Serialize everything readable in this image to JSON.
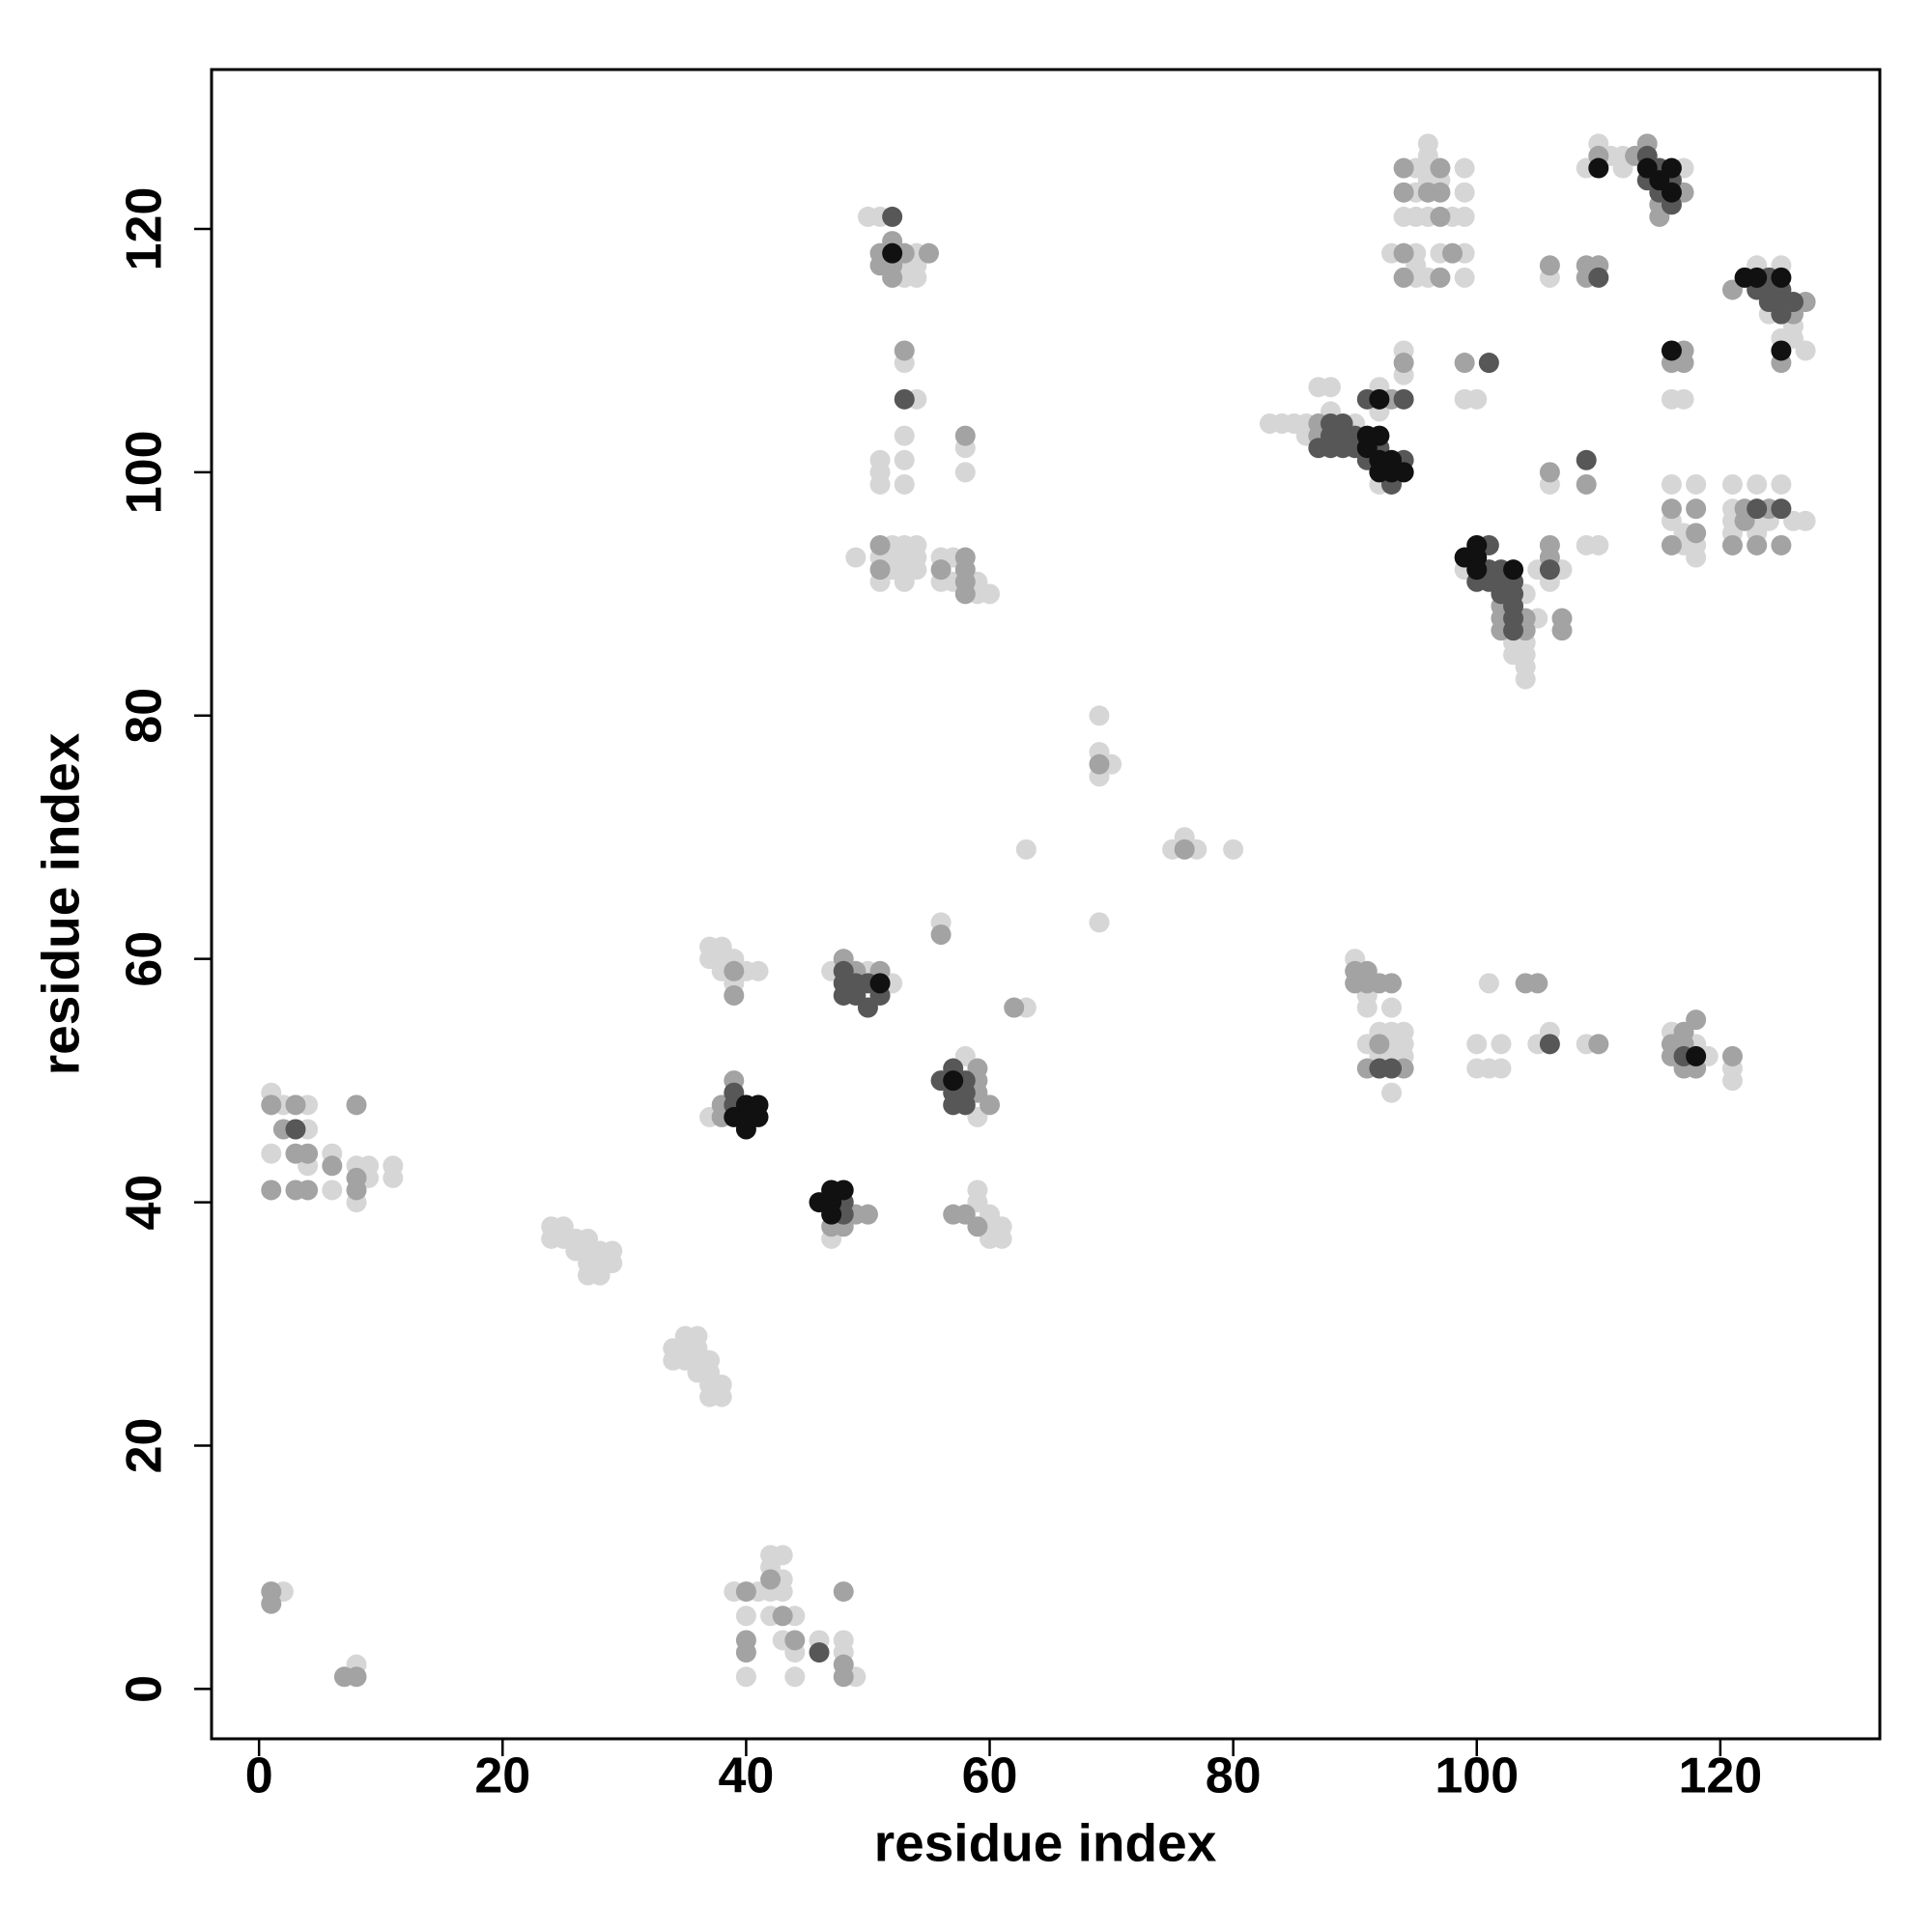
{
  "chart_data": {
    "type": "scatter",
    "xlabel": "residue index",
    "ylabel": "residue index",
    "xlim": [
      -3.9,
      133.1
    ],
    "ylim": [
      -4.1,
      133.1
    ],
    "xticks": [
      0,
      20,
      40,
      60,
      80,
      100,
      120
    ],
    "yticks": [
      0,
      20,
      40,
      60,
      80,
      100,
      120
    ],
    "series": [
      {
        "color": "#d6d6d6",
        "x": [
          1,
          2,
          4,
          4,
          1,
          4,
          6,
          6,
          8,
          9,
          9,
          8,
          11,
          11,
          24,
          25,
          24,
          25,
          26,
          27,
          26,
          27,
          28,
          29,
          27,
          28,
          29,
          27,
          28,
          35,
          36,
          34,
          35,
          36,
          34,
          35,
          36,
          37,
          36,
          37,
          37,
          38,
          37,
          38,
          2,
          8,
          42,
          43,
          42,
          39,
          41,
          42,
          43,
          43,
          40,
          42,
          44,
          43,
          44,
          46,
          48,
          48,
          40,
          44,
          49,
          37,
          38,
          37,
          38,
          39,
          38,
          40,
          41,
          39,
          37,
          47,
          47,
          50,
          52,
          58,
          59,
          59,
          59,
          60,
          60,
          61,
          60,
          61,
          63,
          56,
          69,
          69,
          70,
          69,
          69,
          63,
          75,
          76,
          77,
          80,
          49,
          52,
          53,
          54,
          51,
          52,
          53,
          54,
          52,
          53,
          54,
          51,
          53,
          56,
          57,
          56,
          57,
          59,
          59,
          60,
          51,
          51,
          51,
          53,
          53,
          53,
          58,
          58,
          53,
          54,
          50,
          51,
          54,
          53,
          54,
          53,
          54,
          83,
          84,
          85,
          86,
          86,
          87,
          88,
          88,
          92,
          92,
          90,
          92,
          94,
          94,
          96,
          96,
          95,
          96,
          99,
          95,
          99,
          94,
          95,
          96,
          98,
          99,
          96,
          97,
          93,
          95,
          97,
          99,
          95,
          96,
          99,
          95,
          99,
          100,
          104,
          103,
          104,
          103,
          104,
          104,
          104,
          105,
          106,
          105,
          107,
          99,
          106,
          106,
          109,
          110,
          109,
          110,
          111,
          112,
          117,
          112,
          125,
          123,
          124,
          126,
          125,
          126,
          127,
          116,
          117,
          116,
          118,
          116,
          117,
          117,
          118,
          118,
          121,
          123,
          125,
          121,
          121,
          123,
          124,
          126,
          127,
          121,
          123,
          90,
          91,
          91,
          93,
          93,
          94,
          92,
          91,
          93,
          94,
          92,
          93,
          94,
          93,
          100,
          102,
          105,
          100,
          101,
          102,
          101,
          106,
          109,
          116,
          118,
          119,
          121,
          121
        ],
        "y": [
          49,
          48,
          48,
          46,
          44,
          43,
          44,
          41,
          43,
          43,
          42,
          40,
          43,
          42,
          38,
          38,
          37,
          37,
          37,
          37,
          36,
          36,
          36,
          36,
          35,
          35,
          35,
          34,
          34,
          29,
          29,
          28,
          28,
          28,
          27,
          27,
          27,
          27,
          26,
          26,
          25,
          25,
          24,
          24,
          8,
          2,
          11,
          11,
          10,
          8,
          8,
          8,
          8,
          9,
          6,
          6,
          6,
          4,
          3,
          4,
          4,
          3,
          1,
          1,
          1,
          61,
          61,
          60,
          60,
          60,
          59,
          59,
          59,
          58,
          47,
          37,
          59,
          59,
          58,
          52,
          47,
          41,
          40,
          39,
          38,
          38,
          37,
          37,
          56,
          63,
          80,
          77,
          76,
          75,
          63,
          69,
          69,
          70,
          69,
          69,
          93,
          94,
          94,
          94,
          93,
          93,
          93,
          93,
          92,
          92,
          92,
          91,
          91,
          93,
          93,
          91,
          91,
          91,
          90,
          90,
          101,
          100,
          99,
          103,
          101,
          99,
          102,
          100,
          109,
          106,
          121,
          121,
          118,
          117,
          117,
          116,
          116,
          104,
          104,
          104,
          104,
          103,
          107,
          107,
          105,
          107,
          105,
          104,
          99,
          110,
          108,
          127,
          126,
          125,
          125,
          125,
          123,
          123,
          121,
          121,
          121,
          121,
          121,
          124,
          124,
          118,
          118,
          118,
          118,
          116,
          116,
          116,
          117,
          106,
          106,
          90,
          86,
          86,
          85,
          85,
          84,
          83,
          88,
          91,
          92,
          92,
          92,
          116,
          99,
          94,
          94,
          125,
          127,
          126,
          126,
          125,
          125,
          117,
          117,
          113,
          112,
          111,
          111,
          110,
          106,
          106,
          99,
          99,
          96,
          95,
          94,
          94,
          93,
          99,
          99,
          99,
          97,
          96,
          96,
          96,
          96,
          96,
          95,
          95,
          60,
          57,
          56,
          56,
          54,
          54,
          54,
          53,
          53,
          53,
          52,
          52,
          52,
          49,
          53,
          53,
          53,
          51,
          51,
          51,
          58,
          54,
          53,
          54,
          53,
          52,
          51,
          50
        ]
      },
      {
        "color": "#a3a3a3",
        "x": [
          1,
          3,
          2,
          3,
          4,
          6,
          1,
          3,
          4,
          8,
          8,
          8,
          1,
          1,
          7,
          8,
          40,
          42,
          43,
          40,
          44,
          40,
          48,
          48,
          48,
          39,
          39,
          39,
          38,
          38,
          49,
          47,
          48,
          50,
          48,
          49,
          51,
          59,
          59,
          60,
          59,
          57,
          58,
          59,
          62,
          56,
          69,
          76,
          51,
          51,
          56,
          58,
          58,
          58,
          58,
          58,
          53,
          51,
          53,
          55,
          52,
          51,
          52,
          52,
          87,
          87,
          93,
          94,
          94,
          97,
          94,
          96,
          97,
          97,
          94,
          98,
          94,
          97,
          99,
          102,
          102,
          104,
          102,
          104,
          106,
          106,
          107,
          107,
          106,
          106,
          109,
          109,
          110,
          109,
          110,
          113,
          114,
          117,
          115,
          115,
          121,
          127,
          126,
          125,
          117,
          116,
          117,
          116,
          118,
          118,
          116,
          122,
          124,
          122,
          121,
          123,
          125,
          90,
          91,
          90,
          91,
          92,
          93,
          92,
          91,
          94,
          104,
          105,
          110,
          117,
          116,
          117,
          116,
          117,
          118,
          118,
          121
        ],
        "y": [
          48,
          48,
          46,
          44,
          44,
          43,
          41,
          41,
          41,
          48,
          42,
          41,
          8,
          7,
          1,
          1,
          8,
          9,
          6,
          4,
          4,
          3,
          2,
          8,
          1,
          59,
          57,
          50,
          48,
          47,
          39,
          38,
          38,
          39,
          60,
          59,
          59,
          51,
          49,
          48,
          50,
          39,
          39,
          38,
          56,
          62,
          76,
          69,
          94,
          92,
          92,
          93,
          92,
          91,
          90,
          103,
          110,
          118,
          118,
          118,
          119,
          117,
          117,
          116,
          103,
          104,
          106,
          109,
          125,
          125,
          123,
          123,
          123,
          121,
          118,
          118,
          116,
          116,
          109,
          89,
          88,
          88,
          87,
          87,
          93,
          94,
          88,
          87,
          117,
          100,
          99,
          117,
          117,
          116,
          126,
          126,
          127,
          123,
          122,
          121,
          115,
          114,
          113,
          109,
          110,
          109,
          109,
          97,
          97,
          95,
          94,
          97,
          97,
          96,
          94,
          94,
          94,
          59,
          59,
          58,
          58,
          58,
          58,
          53,
          51,
          51,
          58,
          58,
          53,
          54,
          53,
          53,
          52,
          51,
          51,
          55,
          52
        ]
      },
      {
        "color": "#575757",
        "x": [
          3,
          39,
          39,
          48,
          48,
          46,
          48,
          48,
          49,
          50,
          48,
          49,
          51,
          50,
          56,
          57,
          58,
          58,
          57,
          57,
          58,
          53,
          52,
          88,
          89,
          88,
          89,
          90,
          87,
          88,
          89,
          90,
          92,
          91,
          94,
          93,
          91,
          94,
          101,
          101,
          101,
          100,
          101,
          102,
          102,
          103,
          102,
          103,
          103,
          103,
          103,
          106,
          109,
          110,
          114,
          115,
          114,
          116,
          115,
          116,
          123,
          124,
          124,
          125,
          126,
          124,
          125,
          125,
          123,
          125,
          92,
          93,
          106,
          117
        ],
        "y": [
          46,
          48,
          49,
          40,
          39,
          3,
          59,
          58,
          58,
          58,
          57,
          57,
          57,
          56,
          50,
          51,
          50,
          49,
          49,
          48,
          48,
          106,
          121,
          104,
          104,
          103,
          103,
          103,
          102,
          102,
          102,
          102,
          102,
          101,
          101,
          99,
          106,
          106,
          109,
          94,
          92,
          91,
          91,
          91,
          92,
          91,
          90,
          90,
          89,
          88,
          87,
          92,
          101,
          116,
          126,
          125,
          124,
          124,
          123,
          122,
          115,
          116,
          115,
          115,
          114,
          114,
          114,
          113,
          97,
          97,
          51,
          51,
          53,
          52
        ]
      },
      {
        "color": "#111111",
        "x": [
          40,
          41,
          39,
          40,
          41,
          40,
          46,
          47,
          48,
          47,
          47,
          51,
          57,
          52,
          91,
          92,
          91,
          92,
          93,
          92,
          93,
          94,
          92,
          100,
          99,
          100,
          100,
          103,
          110,
          114,
          116,
          115,
          116,
          122,
          123,
          125,
          125,
          116,
          118
        ],
        "y": [
          48,
          48,
          47,
          47,
          47,
          46,
          40,
          40,
          41,
          41,
          39,
          58,
          50,
          118,
          103,
          103,
          102,
          101,
          101,
          100,
          100,
          100,
          106,
          93,
          93,
          94,
          92,
          92,
          125,
          125,
          125,
          124,
          123,
          116,
          116,
          116,
          110,
          110,
          52
        ]
      }
    ]
  }
}
